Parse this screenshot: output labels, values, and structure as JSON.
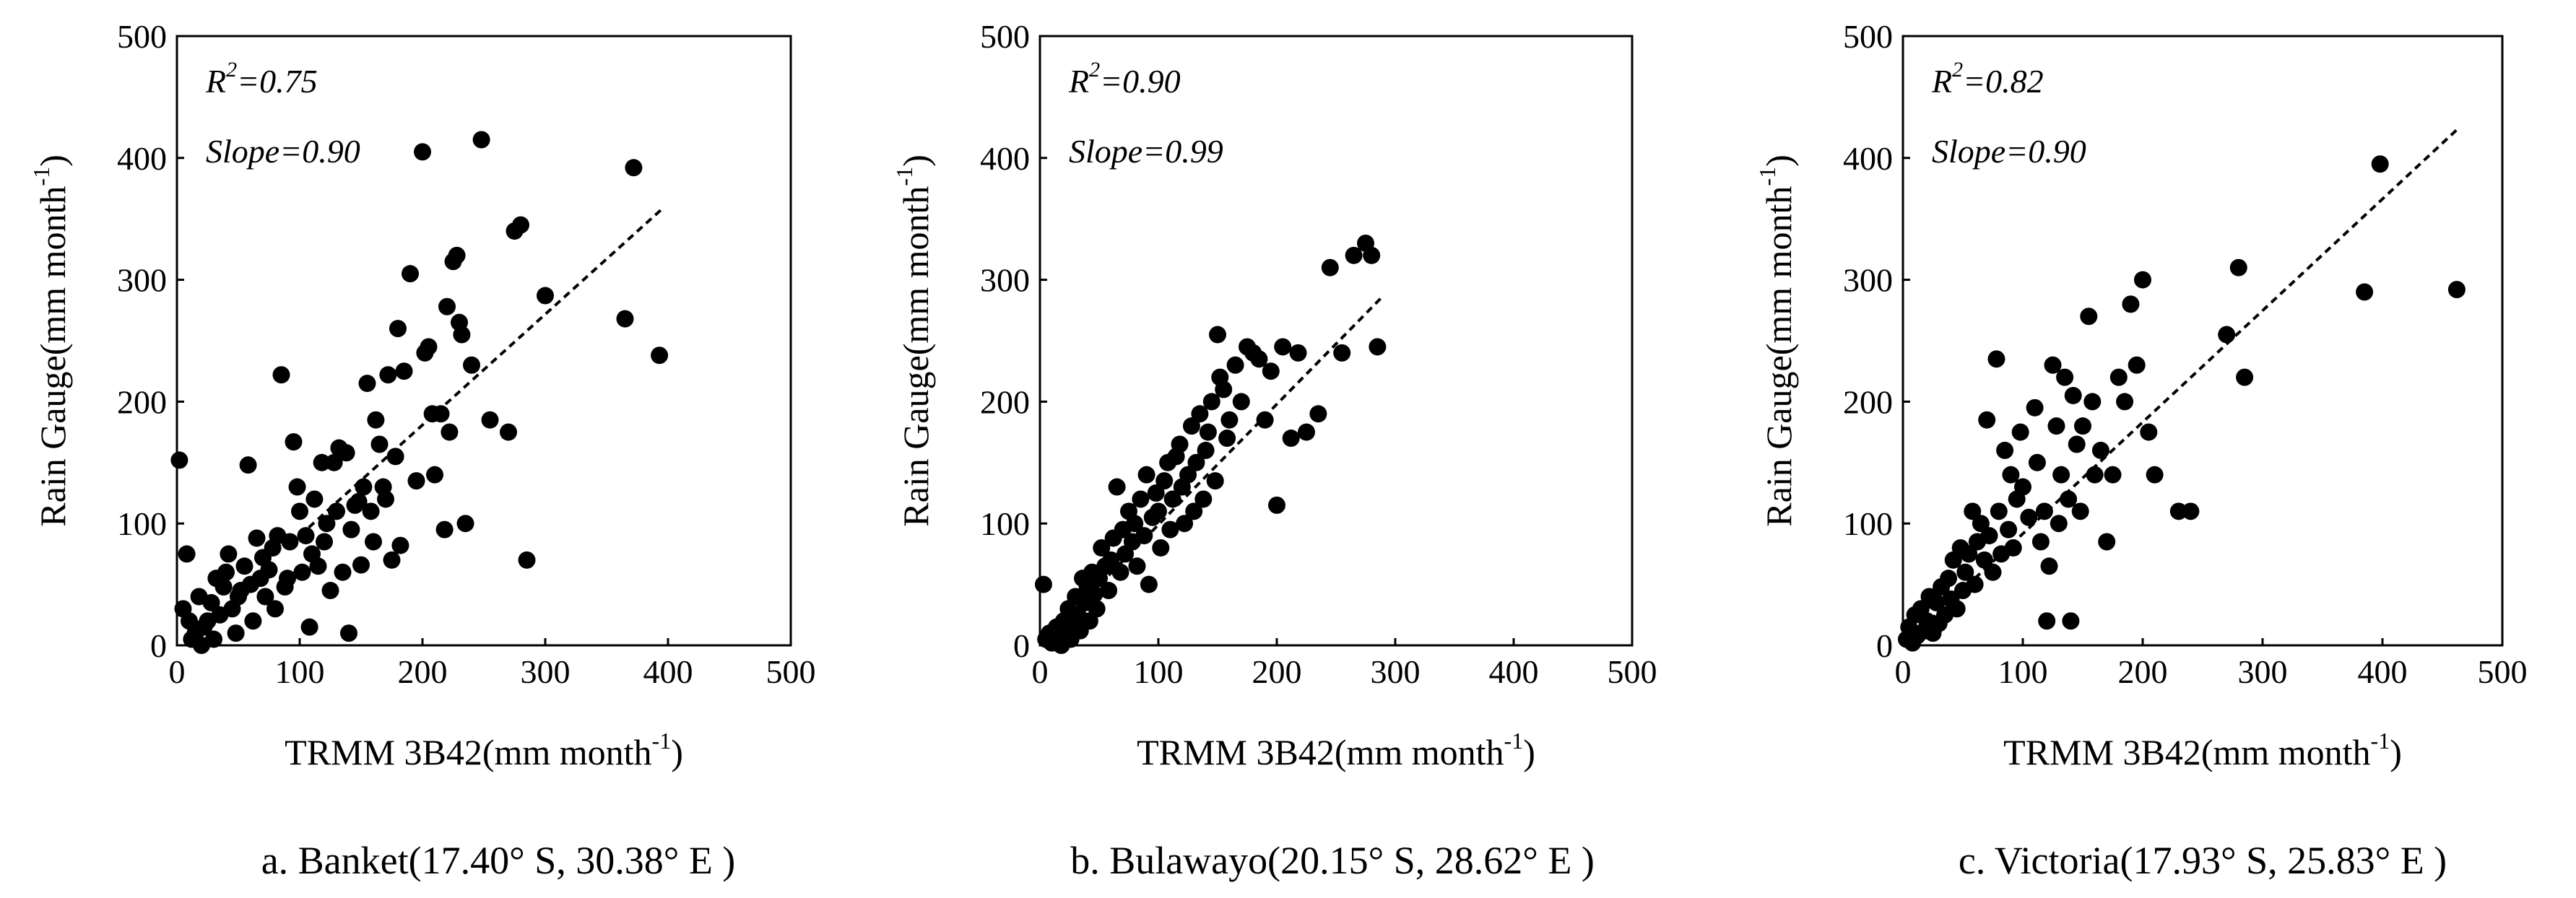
{
  "chart_data": [
    {
      "type": "scatter",
      "title": "",
      "caption": "a. Banket(17.40° S, 30.38° E )",
      "xlabel": "TRMM 3B42(mm month",
      "ylabel": "Rain Gauge(mm month",
      "unit_exponent": "-1",
      "xlim": [
        0,
        500
      ],
      "ylim": [
        0,
        500
      ],
      "xticks": [
        0,
        100,
        200,
        300,
        400,
        500
      ],
      "yticks": [
        0,
        100,
        200,
        300,
        400,
        500
      ],
      "grid": false,
      "r2_label": "R",
      "r2_sup": "2",
      "r2_value": "=0.75",
      "slope_label": "Slope",
      "slope_value": "=0.90",
      "fit_line": [
        [
          100,
          90
        ],
        [
          395,
          358
        ]
      ],
      "points": [
        [
          2,
          152
        ],
        [
          5,
          30
        ],
        [
          8,
          75
        ],
        [
          10,
          20
        ],
        [
          12,
          5
        ],
        [
          15,
          10
        ],
        [
          18,
          40
        ],
        [
          20,
          0
        ],
        [
          22,
          15
        ],
        [
          25,
          20
        ],
        [
          28,
          35
        ],
        [
          30,
          5
        ],
        [
          32,
          55
        ],
        [
          35,
          25
        ],
        [
          38,
          48
        ],
        [
          40,
          60
        ],
        [
          42,
          75
        ],
        [
          45,
          30
        ],
        [
          48,
          10
        ],
        [
          50,
          40
        ],
        [
          52,
          45
        ],
        [
          55,
          65
        ],
        [
          58,
          148
        ],
        [
          60,
          50
        ],
        [
          62,
          20
        ],
        [
          65,
          88
        ],
        [
          68,
          55
        ],
        [
          70,
          72
        ],
        [
          72,
          40
        ],
        [
          75,
          62
        ],
        [
          78,
          80
        ],
        [
          80,
          30
        ],
        [
          82,
          90
        ],
        [
          85,
          222
        ],
        [
          88,
          48
        ],
        [
          90,
          55
        ],
        [
          92,
          85
        ],
        [
          95,
          167
        ],
        [
          98,
          130
        ],
        [
          100,
          110
        ],
        [
          102,
          60
        ],
        [
          105,
          90
        ],
        [
          108,
          15
        ],
        [
          110,
          75
        ],
        [
          112,
          120
        ],
        [
          115,
          65
        ],
        [
          118,
          150
        ],
        [
          120,
          85
        ],
        [
          122,
          100
        ],
        [
          125,
          45
        ],
        [
          128,
          150
        ],
        [
          130,
          110
        ],
        [
          132,
          162
        ],
        [
          135,
          60
        ],
        [
          138,
          158
        ],
        [
          140,
          10
        ],
        [
          142,
          95
        ],
        [
          145,
          115
        ],
        [
          148,
          118
        ],
        [
          150,
          66
        ],
        [
          152,
          130
        ],
        [
          155,
          215
        ],
        [
          158,
          110
        ],
        [
          160,
          85
        ],
        [
          162,
          185
        ],
        [
          165,
          165
        ],
        [
          168,
          130
        ],
        [
          170,
          120
        ],
        [
          172,
          222
        ],
        [
          175,
          70
        ],
        [
          178,
          155
        ],
        [
          180,
          260
        ],
        [
          182,
          82
        ],
        [
          185,
          225
        ],
        [
          190,
          305
        ],
        [
          195,
          135
        ],
        [
          200,
          405
        ],
        [
          202,
          240
        ],
        [
          205,
          245
        ],
        [
          208,
          190
        ],
        [
          210,
          140
        ],
        [
          215,
          190
        ],
        [
          218,
          95
        ],
        [
          220,
          278
        ],
        [
          222,
          175
        ],
        [
          225,
          315
        ],
        [
          228,
          320
        ],
        [
          230,
          265
        ],
        [
          232,
          255
        ],
        [
          235,
          100
        ],
        [
          240,
          230
        ],
        [
          248,
          415
        ],
        [
          255,
          185
        ],
        [
          270,
          175
        ],
        [
          275,
          340
        ],
        [
          280,
          345
        ],
        [
          285,
          70
        ],
        [
          300,
          287
        ],
        [
          365,
          268
        ],
        [
          372,
          392
        ],
        [
          393,
          238
        ]
      ]
    },
    {
      "type": "scatter",
      "title": "",
      "caption": "b. Bulawayo(20.15° S, 28.62° E )",
      "xlabel": "TRMM 3B42(mm month",
      "ylabel": "Rain Gauge(mm month",
      "unit_exponent": "-1",
      "xlim": [
        0,
        500
      ],
      "ylim": [
        0,
        500
      ],
      "xticks": [
        0,
        100,
        200,
        300,
        400,
        500
      ],
      "yticks": [
        0,
        100,
        200,
        300,
        400,
        500
      ],
      "grid": false,
      "r2_label": "R",
      "r2_sup": "2",
      "r2_value": "=0.90",
      "slope_label": "Slope",
      "slope_value": "=0.99",
      "fit_line": [
        [
          0,
          0
        ],
        [
          288,
          285
        ]
      ],
      "points": [
        [
          3,
          50
        ],
        [
          5,
          5
        ],
        [
          8,
          10
        ],
        [
          10,
          2
        ],
        [
          12,
          8
        ],
        [
          14,
          15
        ],
        [
          16,
          5
        ],
        [
          18,
          0
        ],
        [
          20,
          20
        ],
        [
          22,
          10
        ],
        [
          24,
          30
        ],
        [
          26,
          5
        ],
        [
          28,
          18
        ],
        [
          30,
          40
        ],
        [
          32,
          25
        ],
        [
          34,
          12
        ],
        [
          36,
          55
        ],
        [
          38,
          35
        ],
        [
          40,
          48
        ],
        [
          42,
          20
        ],
        [
          44,
          60
        ],
        [
          46,
          42
        ],
        [
          48,
          30
        ],
        [
          50,
          55
        ],
        [
          52,
          80
        ],
        [
          55,
          65
        ],
        [
          58,
          45
        ],
        [
          60,
          70
        ],
        [
          62,
          88
        ],
        [
          65,
          130
        ],
        [
          68,
          60
        ],
        [
          70,
          95
        ],
        [
          72,
          75
        ],
        [
          75,
          110
        ],
        [
          78,
          85
        ],
        [
          80,
          100
        ],
        [
          82,
          65
        ],
        [
          85,
          120
        ],
        [
          88,
          90
        ],
        [
          90,
          140
        ],
        [
          92,
          50
        ],
        [
          95,
          105
        ],
        [
          98,
          125
        ],
        [
          100,
          110
        ],
        [
          102,
          80
        ],
        [
          105,
          135
        ],
        [
          108,
          150
        ],
        [
          110,
          95
        ],
        [
          112,
          120
        ],
        [
          115,
          155
        ],
        [
          118,
          165
        ],
        [
          120,
          130
        ],
        [
          122,
          100
        ],
        [
          125,
          140
        ],
        [
          128,
          180
        ],
        [
          130,
          110
        ],
        [
          132,
          150
        ],
        [
          135,
          190
        ],
        [
          138,
          120
        ],
        [
          140,
          160
        ],
        [
          142,
          175
        ],
        [
          145,
          200
        ],
        [
          148,
          135
        ],
        [
          150,
          255
        ],
        [
          152,
          220
        ],
        [
          155,
          210
        ],
        [
          158,
          170
        ],
        [
          160,
          185
        ],
        [
          165,
          230
        ],
        [
          170,
          200
        ],
        [
          175,
          245
        ],
        [
          180,
          240
        ],
        [
          185,
          235
        ],
        [
          190,
          185
        ],
        [
          195,
          225
        ],
        [
          200,
          115
        ],
        [
          205,
          245
        ],
        [
          212,
          170
        ],
        [
          218,
          240
        ],
        [
          225,
          175
        ],
        [
          235,
          190
        ],
        [
          245,
          310
        ],
        [
          255,
          240
        ],
        [
          265,
          320
        ],
        [
          275,
          330
        ],
        [
          280,
          320
        ],
        [
          285,
          245
        ]
      ]
    },
    {
      "type": "scatter",
      "title": "",
      "caption": "c. Victoria(17.93° S, 25.83° E )",
      "xlabel": "TRMM 3B42(mm month",
      "ylabel": "Rain Gauge(mm month",
      "unit_exponent": "-1",
      "xlim": [
        0,
        500
      ],
      "ylim": [
        0,
        500
      ],
      "xticks": [
        0,
        100,
        200,
        300,
        400,
        500
      ],
      "yticks": [
        0,
        100,
        200,
        300,
        400,
        500
      ],
      "grid": false,
      "r2_label": "R",
      "r2_sup": "2",
      "r2_value": "=0.82",
      "slope_label": "Slope",
      "slope_value": "=0.90",
      "fit_line": [
        [
          0,
          0
        ],
        [
          463,
          424
        ]
      ],
      "points": [
        [
          3,
          5
        ],
        [
          5,
          15
        ],
        [
          8,
          2
        ],
        [
          10,
          25
        ],
        [
          12,
          8
        ],
        [
          15,
          30
        ],
        [
          18,
          12
        ],
        [
          20,
          20
        ],
        [
          22,
          40
        ],
        [
          25,
          10
        ],
        [
          28,
          35
        ],
        [
          30,
          18
        ],
        [
          32,
          48
        ],
        [
          35,
          25
        ],
        [
          38,
          55
        ],
        [
          40,
          38
        ],
        [
          42,
          70
        ],
        [
          45,
          30
        ],
        [
          48,
          80
        ],
        [
          50,
          45
        ],
        [
          52,
          60
        ],
        [
          55,
          75
        ],
        [
          58,
          110
        ],
        [
          60,
          50
        ],
        [
          62,
          85
        ],
        [
          65,
          100
        ],
        [
          68,
          70
        ],
        [
          70,
          185
        ],
        [
          72,
          90
        ],
        [
          75,
          60
        ],
        [
          78,
          235
        ],
        [
          80,
          110
        ],
        [
          82,
          75
        ],
        [
          85,
          160
        ],
        [
          88,
          95
        ],
        [
          90,
          140
        ],
        [
          92,
          80
        ],
        [
          95,
          120
        ],
        [
          98,
          175
        ],
        [
          100,
          130
        ],
        [
          105,
          105
        ],
        [
          110,
          195
        ],
        [
          112,
          150
        ],
        [
          115,
          85
        ],
        [
          118,
          110
        ],
        [
          120,
          20
        ],
        [
          122,
          65
        ],
        [
          125,
          230
        ],
        [
          128,
          180
        ],
        [
          130,
          100
        ],
        [
          132,
          140
        ],
        [
          135,
          220
        ],
        [
          138,
          120
        ],
        [
          140,
          20
        ],
        [
          142,
          205
        ],
        [
          145,
          165
        ],
        [
          148,
          110
        ],
        [
          150,
          180
        ],
        [
          155,
          270
        ],
        [
          158,
          200
        ],
        [
          160,
          140
        ],
        [
          165,
          160
        ],
        [
          170,
          85
        ],
        [
          175,
          140
        ],
        [
          180,
          220
        ],
        [
          185,
          200
        ],
        [
          190,
          280
        ],
        [
          195,
          230
        ],
        [
          200,
          300
        ],
        [
          205,
          175
        ],
        [
          210,
          140
        ],
        [
          230,
          110
        ],
        [
          240,
          110
        ],
        [
          270,
          255
        ],
        [
          280,
          310
        ],
        [
          285,
          220
        ],
        [
          385,
          290
        ],
        [
          398,
          395
        ],
        [
          462,
          292
        ]
      ]
    }
  ]
}
